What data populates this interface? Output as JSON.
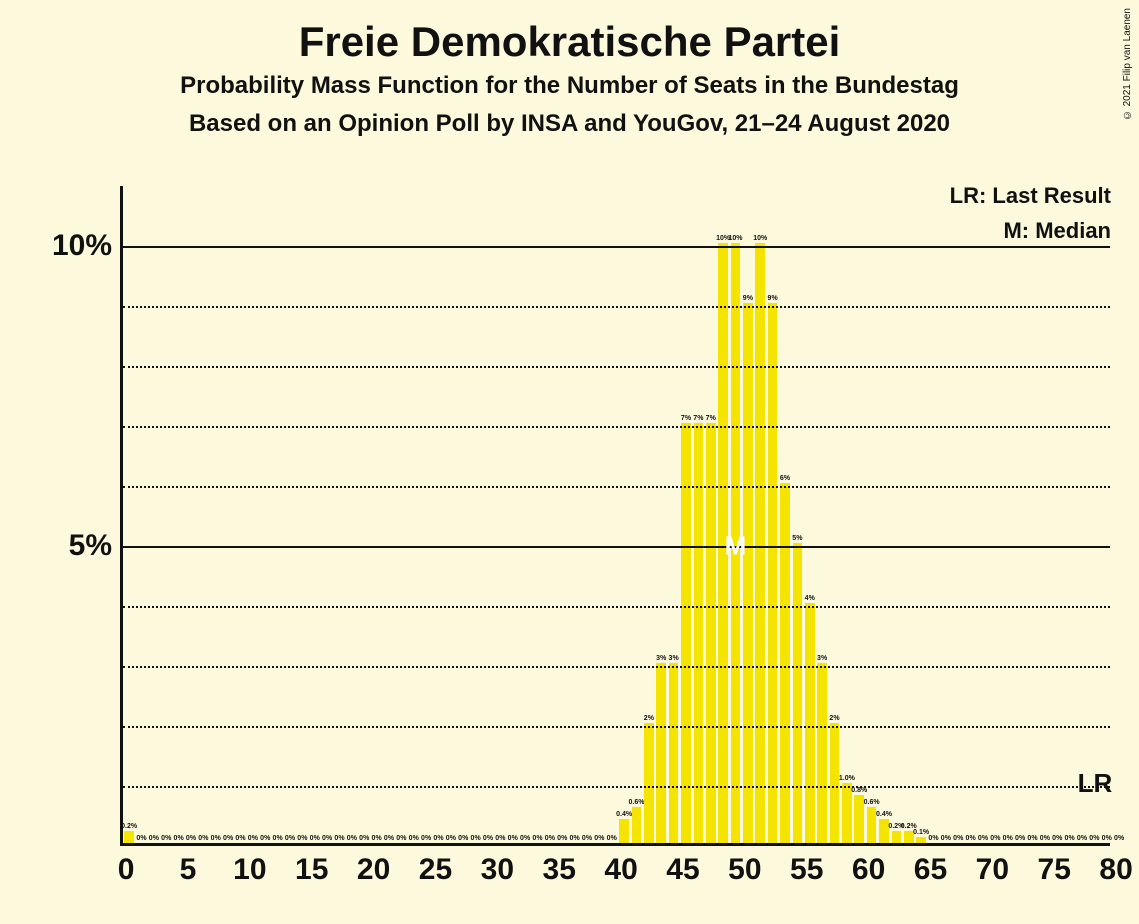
{
  "copyright": "© 2021 Filip van Laenen",
  "titles": {
    "main": "Freie Demokratische Partei",
    "sub1": "Probability Mass Function for the Number of Seats in the Bundestag",
    "sub2": "Based on an Opinion Poll by INSA and YouGov, 21–24 August 2020"
  },
  "legend": {
    "lr": "LR: Last Result",
    "m": "M: Median"
  },
  "chart": {
    "type": "bar",
    "background_color": "#fdf9dd",
    "bar_color": "#f5e300",
    "axis_color": "#111111",
    "grid_major_color": "#111111",
    "grid_minor_color": "#111111",
    "x_min": 0,
    "x_max": 80,
    "y_min": 0,
    "y_max": 11,
    "y_major_ticks": [
      5,
      10
    ],
    "y_minor_step": 1,
    "x_tick_step": 5,
    "x_ticks": [
      0,
      5,
      10,
      15,
      20,
      25,
      30,
      35,
      40,
      45,
      50,
      55,
      60,
      65,
      70,
      75,
      80
    ],
    "y_tick_labels": {
      "5": "5%",
      "10": "10%"
    },
    "bar_width_ratio": 0.78,
    "median_x": 49,
    "median_label": "M",
    "lr_x": 80,
    "lr_label": "LR",
    "data": [
      {
        "x": 0,
        "v": 0.2,
        "l": "0.2%"
      },
      {
        "x": 1,
        "v": 0,
        "l": "0%"
      },
      {
        "x": 2,
        "v": 0,
        "l": "0%"
      },
      {
        "x": 3,
        "v": 0,
        "l": "0%"
      },
      {
        "x": 4,
        "v": 0,
        "l": "0%"
      },
      {
        "x": 5,
        "v": 0,
        "l": "0%"
      },
      {
        "x": 6,
        "v": 0,
        "l": "0%"
      },
      {
        "x": 7,
        "v": 0,
        "l": "0%"
      },
      {
        "x": 8,
        "v": 0,
        "l": "0%"
      },
      {
        "x": 9,
        "v": 0,
        "l": "0%"
      },
      {
        "x": 10,
        "v": 0,
        "l": "0%"
      },
      {
        "x": 11,
        "v": 0,
        "l": "0%"
      },
      {
        "x": 12,
        "v": 0,
        "l": "0%"
      },
      {
        "x": 13,
        "v": 0,
        "l": "0%"
      },
      {
        "x": 14,
        "v": 0,
        "l": "0%"
      },
      {
        "x": 15,
        "v": 0,
        "l": "0%"
      },
      {
        "x": 16,
        "v": 0,
        "l": "0%"
      },
      {
        "x": 17,
        "v": 0,
        "l": "0%"
      },
      {
        "x": 18,
        "v": 0,
        "l": "0%"
      },
      {
        "x": 19,
        "v": 0,
        "l": "0%"
      },
      {
        "x": 20,
        "v": 0,
        "l": "0%"
      },
      {
        "x": 21,
        "v": 0,
        "l": "0%"
      },
      {
        "x": 22,
        "v": 0,
        "l": "0%"
      },
      {
        "x": 23,
        "v": 0,
        "l": "0%"
      },
      {
        "x": 24,
        "v": 0,
        "l": "0%"
      },
      {
        "x": 25,
        "v": 0,
        "l": "0%"
      },
      {
        "x": 26,
        "v": 0,
        "l": "0%"
      },
      {
        "x": 27,
        "v": 0,
        "l": "0%"
      },
      {
        "x": 28,
        "v": 0,
        "l": "0%"
      },
      {
        "x": 29,
        "v": 0,
        "l": "0%"
      },
      {
        "x": 30,
        "v": 0,
        "l": "0%"
      },
      {
        "x": 31,
        "v": 0,
        "l": "0%"
      },
      {
        "x": 32,
        "v": 0,
        "l": "0%"
      },
      {
        "x": 33,
        "v": 0,
        "l": "0%"
      },
      {
        "x": 34,
        "v": 0,
        "l": "0%"
      },
      {
        "x": 35,
        "v": 0,
        "l": "0%"
      },
      {
        "x": 36,
        "v": 0,
        "l": "0%"
      },
      {
        "x": 37,
        "v": 0,
        "l": "0%"
      },
      {
        "x": 38,
        "v": 0,
        "l": "0%"
      },
      {
        "x": 39,
        "v": 0,
        "l": "0%"
      },
      {
        "x": 40,
        "v": 0.4,
        "l": "0.4%"
      },
      {
        "x": 41,
        "v": 0.6,
        "l": "0.6%"
      },
      {
        "x": 42,
        "v": 2,
        "l": "2%"
      },
      {
        "x": 43,
        "v": 3,
        "l": "3%"
      },
      {
        "x": 44,
        "v": 3,
        "l": "3%"
      },
      {
        "x": 45,
        "v": 7,
        "l": "7%"
      },
      {
        "x": 46,
        "v": 7,
        "l": "7%"
      },
      {
        "x": 47,
        "v": 7,
        "l": "7%"
      },
      {
        "x": 48,
        "v": 10,
        "l": "10%"
      },
      {
        "x": 49,
        "v": 10,
        "l": "10%"
      },
      {
        "x": 50,
        "v": 9,
        "l": "9%"
      },
      {
        "x": 51,
        "v": 10,
        "l": "10%"
      },
      {
        "x": 52,
        "v": 9,
        "l": "9%"
      },
      {
        "x": 53,
        "v": 6,
        "l": "6%"
      },
      {
        "x": 54,
        "v": 5,
        "l": "5%"
      },
      {
        "x": 55,
        "v": 4,
        "l": "4%"
      },
      {
        "x": 56,
        "v": 3,
        "l": "3%"
      },
      {
        "x": 57,
        "v": 2,
        "l": "2%"
      },
      {
        "x": 58,
        "v": 1.0,
        "l": "1.0%"
      },
      {
        "x": 59,
        "v": 0.8,
        "l": "0.8%"
      },
      {
        "x": 60,
        "v": 0.6,
        "l": "0.6%"
      },
      {
        "x": 61,
        "v": 0.4,
        "l": "0.4%"
      },
      {
        "x": 62,
        "v": 0.2,
        "l": "0.2%"
      },
      {
        "x": 63,
        "v": 0.2,
        "l": "0.2%"
      },
      {
        "x": 64,
        "v": 0.1,
        "l": "0.1%"
      },
      {
        "x": 65,
        "v": 0,
        "l": "0%"
      },
      {
        "x": 66,
        "v": 0,
        "l": "0%"
      },
      {
        "x": 67,
        "v": 0,
        "l": "0%"
      },
      {
        "x": 68,
        "v": 0,
        "l": "0%"
      },
      {
        "x": 69,
        "v": 0,
        "l": "0%"
      },
      {
        "x": 70,
        "v": 0,
        "l": "0%"
      },
      {
        "x": 71,
        "v": 0,
        "l": "0%"
      },
      {
        "x": 72,
        "v": 0,
        "l": "0%"
      },
      {
        "x": 73,
        "v": 0,
        "l": "0%"
      },
      {
        "x": 74,
        "v": 0,
        "l": "0%"
      },
      {
        "x": 75,
        "v": 0,
        "l": "0%"
      },
      {
        "x": 76,
        "v": 0,
        "l": "0%"
      },
      {
        "x": 77,
        "v": 0,
        "l": "0%"
      },
      {
        "x": 78,
        "v": 0,
        "l": "0%"
      },
      {
        "x": 79,
        "v": 0,
        "l": "0%"
      },
      {
        "x": 80,
        "v": 0,
        "l": "0%"
      }
    ]
  }
}
